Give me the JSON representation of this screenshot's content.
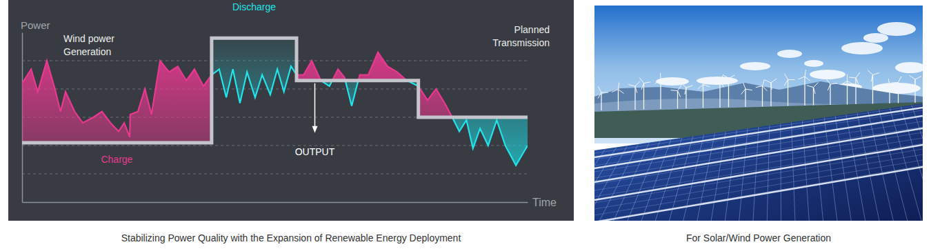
{
  "chart_data": {
    "type": "line",
    "title": "Stabilizing Power Quality with the Expansion of Renewable Energy Deployment",
    "xlabel": "Time",
    "ylabel": "Power",
    "xlim": [
      0,
      100
    ],
    "ylim": [
      0,
      6
    ],
    "yticks": [
      1,
      2,
      3,
      4,
      5
    ],
    "grid": true,
    "tick_labels": false,
    "annotations": [
      "Charge",
      "Discharge",
      "OUTPUT"
    ],
    "series": [
      {
        "name": "Wind power Generation",
        "color": "#e8388f",
        "x": [
          0,
          1.8,
          3.1,
          4.9,
          6.5,
          7.6,
          8.6,
          10.4,
          12.0,
          14.1,
          15.8,
          17.5,
          19.1,
          20.2,
          21.3,
          21.4,
          22.9,
          24.3,
          25.6,
          27.3,
          29.1,
          30.8,
          32.5,
          34.1,
          35.9,
          37.5,
          39.0,
          40.4,
          41.7,
          43.1,
          44.5,
          46.1,
          47.5,
          49.1,
          50.5,
          51.8,
          53.2,
          54.3,
          55.7,
          57.3,
          59.1,
          60.8,
          62.5,
          63.8,
          65.2,
          66.8,
          68.5,
          70.4,
          72.3,
          74.2,
          76.1,
          78.4,
          80.2,
          81.9,
          83.6,
          85.1,
          86.5,
          87.9,
          89.2,
          90.6,
          92.2,
          93.9,
          95.6,
          97.7,
          100
        ],
        "values": [
          4.2,
          4.7,
          3.9,
          5.0,
          4.0,
          3.2,
          3.9,
          3.2,
          2.8,
          3.0,
          3.2,
          2.8,
          2.5,
          2.8,
          2.3,
          3.1,
          3.2,
          4.0,
          3.1,
          5.0,
          4.6,
          4.8,
          4.3,
          4.7,
          4.1,
          4.5,
          4.7,
          3.7,
          4.7,
          3.5,
          4.6,
          3.7,
          4.5,
          3.8,
          4.7,
          3.9,
          4.8,
          4.5,
          4.5,
          5.0,
          4.3,
          4.1,
          4.7,
          4.4,
          3.4,
          4.5,
          4.5,
          5.3,
          4.8,
          4.6,
          4.3,
          4.1,
          3.6,
          4.0,
          3.5,
          3.0,
          2.5,
          2.9,
          1.9,
          2.6,
          2.0,
          2.9,
          2.0,
          1.3,
          2.0
        ]
      },
      {
        "name": "Planned Transmission",
        "color": "#c4c4cc",
        "line_style": "step",
        "x": [
          0,
          37.5,
          54.3,
          78.4,
          100
        ],
        "values": [
          2.1,
          5.8,
          4.3,
          3.0,
          3.0
        ]
      }
    ]
  },
  "image": {
    "caption": "For Solar/Wind Power Generation"
  }
}
